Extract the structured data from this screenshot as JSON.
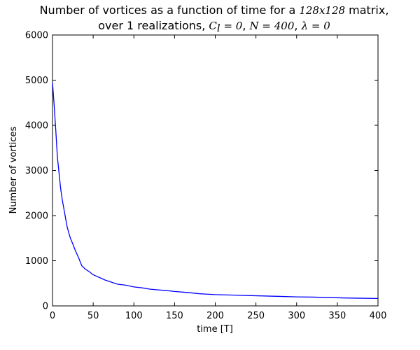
{
  "chart_data": {
    "type": "line",
    "title_line1_prefix": "Number of vortices as a function of time for a ",
    "title_line1_math": "128x128",
    "title_line1_suffix": " matrix,",
    "title_line2_prefix": "over 1    realizations, ",
    "title_line2_math_c": "C",
    "title_line2_math_c_sub": "l",
    "title_line2_math_c_rest": " = 0",
    "title_line2_sep1": ", ",
    "title_line2_math_n": "N = 400",
    "title_line2_sep2": ", ",
    "title_line2_math_lambda": "λ = 0",
    "xlabel": "time [T]",
    "ylabel": "Number of vortices",
    "xlim": [
      0,
      400
    ],
    "ylim": [
      0,
      6000
    ],
    "xticks": [
      "0",
      "50",
      "100",
      "150",
      "200",
      "250",
      "300",
      "350",
      "400"
    ],
    "yticks": [
      "0",
      "1000",
      "2000",
      "3000",
      "4000",
      "5000",
      "6000"
    ],
    "grid": false,
    "line_color": "#0000ff",
    "series": [
      {
        "x": [
          0,
          2,
          4,
          6,
          8,
          10,
          12,
          14,
          16,
          18,
          20,
          22,
          25,
          28,
          32,
          36,
          40,
          45,
          50,
          55,
          60,
          65,
          70,
          75,
          80,
          90,
          100,
          110,
          120,
          130,
          140,
          150,
          160,
          170,
          180,
          190,
          200,
          220,
          240,
          260,
          280,
          300,
          320,
          340,
          360,
          380,
          400
        ],
        "y": [
          4950,
          4450,
          3900,
          3300,
          2950,
          2600,
          2350,
          2150,
          1950,
          1750,
          1620,
          1500,
          1370,
          1230,
          1070,
          890,
          820,
          760,
          690,
          650,
          610,
          570,
          540,
          510,
          480,
          460,
          420,
          400,
          370,
          355,
          340,
          320,
          305,
          290,
          270,
          260,
          250,
          240,
          230,
          220,
          210,
          200,
          195,
          185,
          175,
          170,
          165
        ]
      }
    ]
  }
}
